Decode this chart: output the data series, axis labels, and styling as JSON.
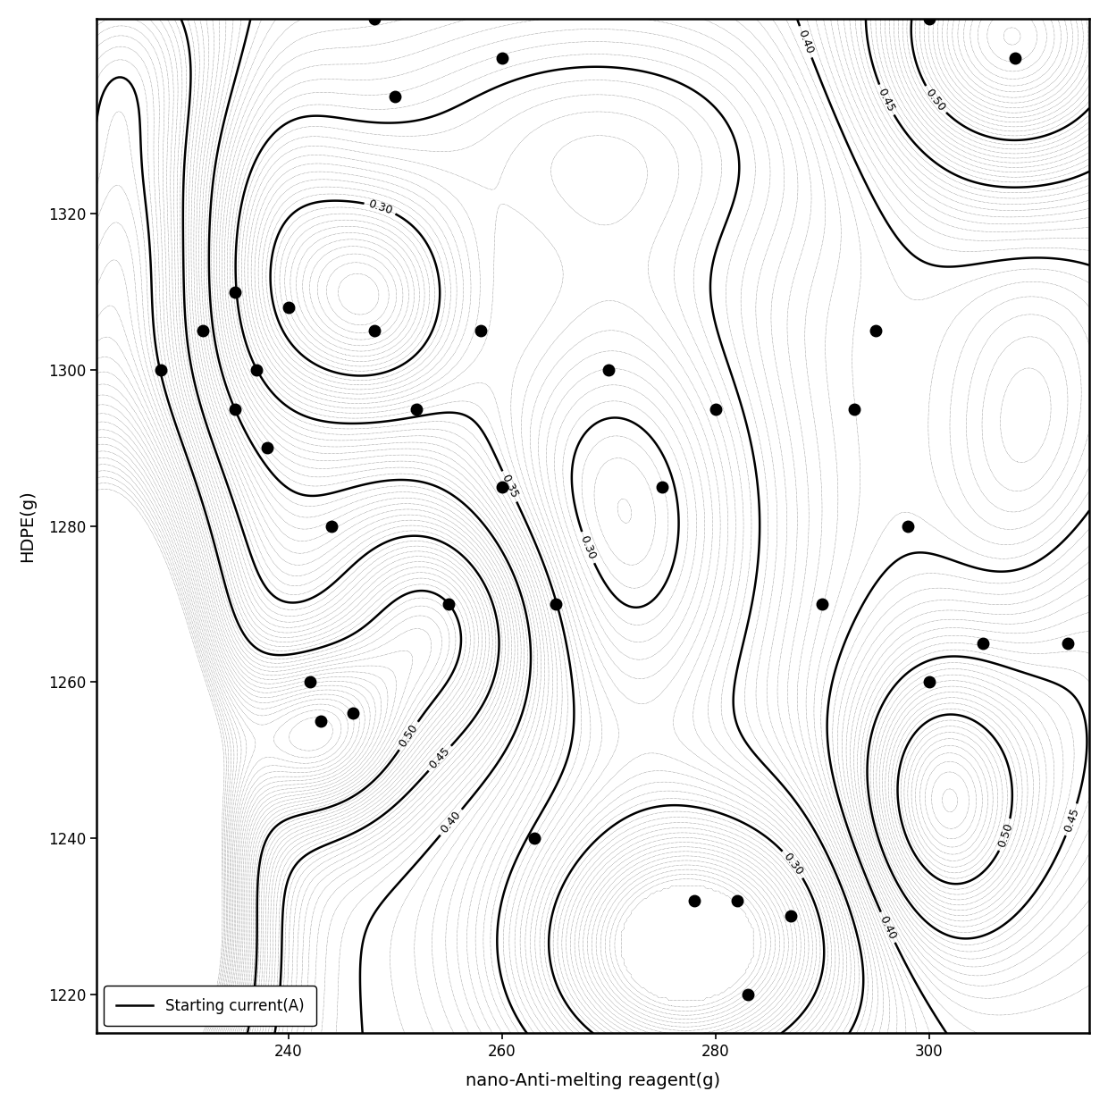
{
  "xlabel": "nano-Anti-melting reagent(g)",
  "ylabel": "HDPE(g)",
  "legend_label": "Starting current(A)",
  "xlim": [
    222,
    315
  ],
  "ylim": [
    1215,
    1345
  ],
  "xticks": [
    240,
    260,
    280,
    300
  ],
  "yticks": [
    1220,
    1240,
    1260,
    1280,
    1300,
    1320
  ],
  "labeled_levels": [
    0.3,
    0.35,
    0.4,
    0.45,
    0.5
  ],
  "data_points": [
    [
      228,
      1300
    ],
    [
      232,
      1305
    ],
    [
      235,
      1310
    ],
    [
      235,
      1295
    ],
    [
      237,
      1300
    ],
    [
      238,
      1290
    ],
    [
      240,
      1308
    ],
    [
      242,
      1260
    ],
    [
      243,
      1255
    ],
    [
      244,
      1280
    ],
    [
      246,
      1256
    ],
    [
      248,
      1305
    ],
    [
      250,
      1335
    ],
    [
      252,
      1295
    ],
    [
      255,
      1270
    ],
    [
      258,
      1305
    ],
    [
      260,
      1285
    ],
    [
      260,
      1340
    ],
    [
      263,
      1240
    ],
    [
      265,
      1270
    ],
    [
      270,
      1300
    ],
    [
      275,
      1285
    ],
    [
      278,
      1232
    ],
    [
      280,
      1295
    ],
    [
      282,
      1232
    ],
    [
      283,
      1220
    ],
    [
      287,
      1230
    ],
    [
      290,
      1270
    ],
    [
      293,
      1295
    ],
    [
      295,
      1305
    ],
    [
      298,
      1280
    ],
    [
      300,
      1260
    ],
    [
      305,
      1265
    ],
    [
      308,
      1340
    ],
    [
      313,
      1265
    ],
    [
      248,
      1345
    ],
    [
      300,
      1345
    ]
  ],
  "figsize": [
    12.4,
    12.4
  ],
  "dpi": 100
}
